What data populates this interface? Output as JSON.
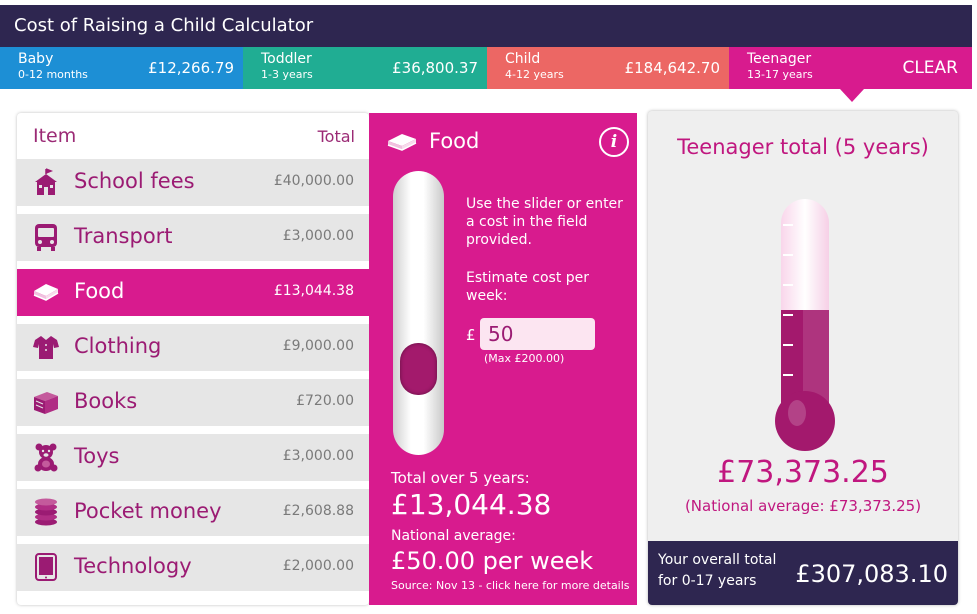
{
  "app": {
    "title": "Cost of Raising a Child Calculator"
  },
  "stages": [
    {
      "name": "Baby",
      "range": "0-12 months",
      "total": "£12,266.79"
    },
    {
      "name": "Toddler",
      "range": "1-3 years",
      "total": "£36,800.37"
    },
    {
      "name": "Child",
      "range": "4-12 years",
      "total": "£184,642.70"
    },
    {
      "name": "Teenager",
      "range": "13-17 years",
      "total": ""
    }
  ],
  "clear_label": "CLEAR",
  "list": {
    "header_item": "Item",
    "header_total": "Total",
    "rows": [
      {
        "icon": "school-icon",
        "label": "School fees",
        "value": "£40,000.00"
      },
      {
        "icon": "bus-icon",
        "label": "Transport",
        "value": "£3,000.00"
      },
      {
        "icon": "sandwich-icon",
        "label": "Food",
        "value": "£13,044.38",
        "active": true
      },
      {
        "icon": "shirt-icon",
        "label": "Clothing",
        "value": "£9,000.00"
      },
      {
        "icon": "books-icon",
        "label": "Books",
        "value": "£720.00"
      },
      {
        "icon": "teddy-bear-icon",
        "label": "Toys",
        "value": "£3,000.00"
      },
      {
        "icon": "coins-icon",
        "label": "Pocket money",
        "value": "£2,608.88"
      },
      {
        "icon": "tablet-icon",
        "label": "Technology",
        "value": "£2,000.00"
      }
    ]
  },
  "detail": {
    "title": "Food",
    "info_glyph": "i",
    "instructions": "Use the slider or enter a cost in the field provided.",
    "estimate_label": "Estimate cost per week:",
    "currency_symbol": "£",
    "cost_value": "50",
    "max_note": "(Max £200.00)",
    "slider_fraction": 0.25,
    "total_label": "Total over 5 years:",
    "total_value": "£13,044.38",
    "national_label": "National average:",
    "national_value": "£50.00 per week",
    "source_text": "Source:  Nov 13 - click here for more details"
  },
  "teen_panel": {
    "title": "Teenager total (5 years)",
    "value": "£73,373.25",
    "national_average": "(National average: £73,373.25)",
    "thermometer_fill_fraction": 0.5,
    "overall_label": "Your overall total for 0-17 years",
    "overall_value": "£307,083.10"
  },
  "colors": {
    "navy": "#2e2650",
    "magenta": "#d81b8e",
    "baby_blue": "#1d8fd5",
    "toddler_teal": "#20ad93",
    "child_coral": "#ec6764"
  }
}
